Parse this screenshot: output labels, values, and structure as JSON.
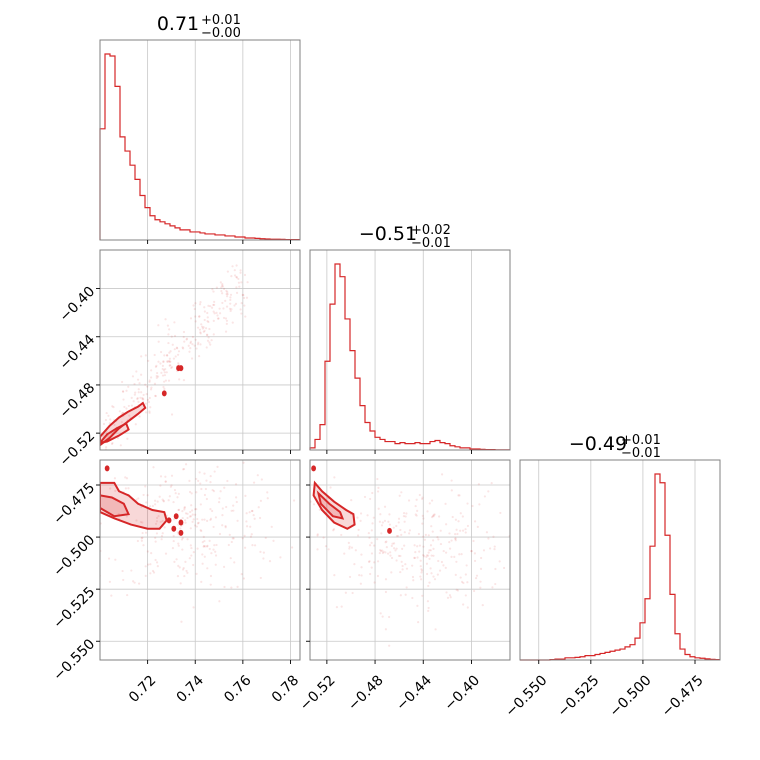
{
  "colors": {
    "accent": "#d62728",
    "frame": "#808080",
    "grid": "#c8c8c8"
  },
  "chart_data": {
    "type": "corner",
    "params": [
      {
        "median": "0.71",
        "plus": "+0.01",
        "minus": "−0.00",
        "range": [
          0.7,
          0.784
        ],
        "ticks": [
          0.72,
          0.74,
          0.76,
          0.78
        ],
        "tick_labels": [
          "0.72",
          "0.74",
          "0.76",
          "0.78"
        ],
        "hist": [
          0.55,
          0.92,
          0.91,
          0.76,
          0.51,
          0.44,
          0.37,
          0.3,
          0.22,
          0.16,
          0.12,
          0.1,
          0.09,
          0.08,
          0.07,
          0.06,
          0.05,
          0.05,
          0.04,
          0.04,
          0.035,
          0.03,
          0.03,
          0.025,
          0.025,
          0.02,
          0.02,
          0.015,
          0.015,
          0.01,
          0.01,
          0.008,
          0.006,
          0.005,
          0.004,
          0.004,
          0.003,
          0.002,
          0.002,
          0.002
        ]
      },
      {
        "median": "−0.51",
        "plus": "+0.02",
        "minus": "−0.01",
        "range": [
          -0.534,
          -0.368
        ],
        "ticks": [
          -0.52,
          -0.48,
          -0.44,
          -0.4
        ],
        "tick_labels": [
          "−0.52",
          "−0.48",
          "−0.44",
          "−0.40"
        ],
        "hist": [
          0.01,
          0.05,
          0.12,
          0.42,
          0.69,
          0.88,
          0.82,
          0.62,
          0.47,
          0.34,
          0.21,
          0.13,
          0.09,
          0.06,
          0.05,
          0.04,
          0.04,
          0.03,
          0.035,
          0.03,
          0.03,
          0.035,
          0.03,
          0.03,
          0.04,
          0.045,
          0.035,
          0.03,
          0.02,
          0.015,
          0.01,
          0.01,
          0.005,
          0.005,
          0.003,
          0.002,
          0.002,
          0.001,
          0.001,
          0.001
        ]
      },
      {
        "median": "−0.49",
        "plus": "+0.01",
        "minus": "−0.01",
        "range": [
          -0.559,
          -0.463
        ],
        "ticks": [
          -0.55,
          -0.525,
          -0.5,
          -0.475
        ],
        "tick_labels": [
          "−0.550",
          "−0.525",
          "−0.500",
          "−0.475"
        ],
        "hist": [
          0.0,
          0.0,
          0.0,
          0.0,
          0.0,
          0.0,
          0.002,
          0.004,
          0.004,
          0.01,
          0.01,
          0.012,
          0.015,
          0.02,
          0.02,
          0.025,
          0.03,
          0.035,
          0.04,
          0.045,
          0.05,
          0.06,
          0.07,
          0.1,
          0.17,
          0.28,
          0.52,
          0.85,
          0.81,
          0.57,
          0.3,
          0.12,
          0.05,
          0.025,
          0.015,
          0.01,
          0.008,
          0.005,
          0.003,
          0.002
        ]
      }
    ],
    "pairs": [
      {
        "x_param": 0,
        "y_param": 1,
        "contour_levels": [
          [
            [
              0.7,
              -0.523
            ],
            [
              0.704,
              -0.514
            ],
            [
              0.708,
              -0.507
            ],
            [
              0.712,
              -0.502
            ],
            [
              0.716,
              -0.498
            ],
            [
              0.718,
              -0.495
            ],
            [
              0.719,
              -0.499
            ],
            [
              0.716,
              -0.504
            ],
            [
              0.712,
              -0.51
            ],
            [
              0.708,
              -0.516
            ],
            [
              0.704,
              -0.524
            ],
            [
              0.7,
              -0.53
            ]
          ],
          [
            [
              0.7,
              -0.528
            ],
            [
              0.703,
              -0.521
            ],
            [
              0.707,
              -0.516
            ],
            [
              0.711,
              -0.512
            ],
            [
              0.712,
              -0.517
            ],
            [
              0.708,
              -0.522
            ],
            [
              0.703,
              -0.527
            ]
          ]
        ],
        "blobs": [
          [
            0.727,
            -0.487
          ],
          [
            0.733,
            -0.466
          ],
          [
            0.734,
            -0.466
          ]
        ],
        "scatter_center": [
          0.738,
          -0.45
        ],
        "scatter_spread": [
          0.022,
          0.04
        ]
      },
      {
        "x_param": 0,
        "y_param": 2,
        "contour_levels": [
          [
            [
              0.7,
              -0.474
            ],
            [
              0.706,
              -0.474
            ],
            [
              0.708,
              -0.478
            ],
            [
              0.712,
              -0.48
            ],
            [
              0.716,
              -0.484
            ],
            [
              0.722,
              -0.487
            ],
            [
              0.727,
              -0.488
            ],
            [
              0.728,
              -0.492
            ],
            [
              0.725,
              -0.496
            ],
            [
              0.72,
              -0.496
            ],
            [
              0.713,
              -0.494
            ],
            [
              0.706,
              -0.491
            ],
            [
              0.7,
              -0.488
            ]
          ],
          [
            [
              0.7,
              -0.48
            ],
            [
              0.705,
              -0.481
            ],
            [
              0.71,
              -0.484
            ],
            [
              0.712,
              -0.489
            ],
            [
              0.706,
              -0.49
            ],
            [
              0.7,
              -0.486
            ]
          ]
        ],
        "blobs": [
          [
            0.729,
            -0.492
          ],
          [
            0.731,
            -0.496
          ],
          [
            0.734,
            -0.493
          ],
          [
            0.734,
            -0.498
          ],
          [
            0.732,
            -0.49
          ],
          [
            0.703,
            -0.467
          ]
        ],
        "scatter_center": [
          0.738,
          -0.495
        ],
        "scatter_spread": [
          0.02,
          0.016
        ]
      },
      {
        "x_param": 1,
        "y_param": 2,
        "contour_levels": [
          [
            [
              -0.53,
              -0.474
            ],
            [
              -0.524,
              -0.478
            ],
            [
              -0.514,
              -0.483
            ],
            [
              -0.504,
              -0.487
            ],
            [
              -0.498,
              -0.489
            ],
            [
              -0.497,
              -0.494
            ],
            [
              -0.503,
              -0.496
            ],
            [
              -0.514,
              -0.493
            ],
            [
              -0.524,
              -0.487
            ],
            [
              -0.531,
              -0.48
            ]
          ],
          [
            [
              -0.527,
              -0.479
            ],
            [
              -0.518,
              -0.484
            ],
            [
              -0.509,
              -0.488
            ],
            [
              -0.507,
              -0.491
            ],
            [
              -0.515,
              -0.49
            ],
            [
              -0.525,
              -0.484
            ]
          ]
        ],
        "blobs": [
          [
            -0.468,
            -0.497
          ],
          [
            -0.531,
            -0.467
          ]
        ],
        "scatter_center": [
          -0.45,
          -0.505
        ],
        "scatter_spread": [
          0.04,
          0.015
        ]
      }
    ]
  }
}
